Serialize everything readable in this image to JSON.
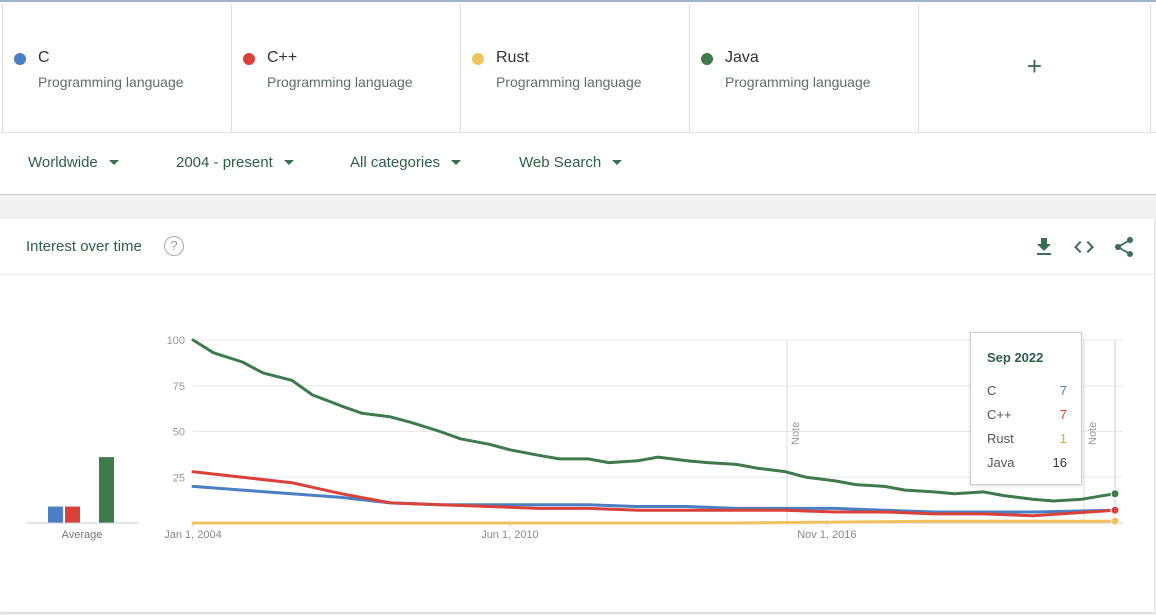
{
  "terms": [
    {
      "name": "C",
      "subtitle": "Programming language",
      "color": "#4a80c3"
    },
    {
      "name": "C++",
      "subtitle": "Programming language",
      "color": "#d9413a"
    },
    {
      "name": "Rust",
      "subtitle": "Programming language",
      "color": "#f0c25e"
    },
    {
      "name": "Java",
      "subtitle": "Programming language",
      "color": "#3d7a4c"
    }
  ],
  "add_label": "+",
  "filters": {
    "region": "Worldwide",
    "time": "2004 - present",
    "category": "All categories",
    "search_type": "Web Search"
  },
  "card": {
    "title": "Interest over time",
    "help_icon": "?",
    "icons": [
      "download-icon",
      "embed-icon",
      "share-icon"
    ]
  },
  "average_label": "Average",
  "notes": [
    "Note",
    "Note"
  ],
  "tooltip": {
    "date": "Sep 2022",
    "rows": [
      {
        "name": "C",
        "value": "7"
      },
      {
        "name": "C++",
        "value": "7"
      },
      {
        "name": "Rust",
        "value": "1"
      },
      {
        "name": "Java",
        "value": "16"
      }
    ]
  },
  "chart_data": {
    "type": "line",
    "x_tick_labels": [
      "Jan 1, 2004",
      "Jun 1, 2010",
      "Nov 1, 2016"
    ],
    "y_tick_labels": [
      "100",
      "75",
      "50",
      "25"
    ],
    "ylim": [
      0,
      100
    ],
    "xlim": [
      "2004-01",
      "2022-09"
    ],
    "grid": true,
    "series": [
      {
        "name": "C",
        "color": "#4a80c3",
        "points": [
          [
            "2004-01",
            20
          ],
          [
            "2005-01",
            18
          ],
          [
            "2006-01",
            16
          ],
          [
            "2007-01",
            14
          ],
          [
            "2008-01",
            11
          ],
          [
            "2009-01",
            10
          ],
          [
            "2010-01",
            10
          ],
          [
            "2011-01",
            10
          ],
          [
            "2012-01",
            10
          ],
          [
            "2013-01",
            9
          ],
          [
            "2014-01",
            9
          ],
          [
            "2015-01",
            8
          ],
          [
            "2016-01",
            8
          ],
          [
            "2017-01",
            8
          ],
          [
            "2018-01",
            7
          ],
          [
            "2019-01",
            6
          ],
          [
            "2020-01",
            6
          ],
          [
            "2021-01",
            6
          ],
          [
            "2022-09",
            7
          ]
        ]
      },
      {
        "name": "C++",
        "color": "#d9413a",
        "points": [
          [
            "2004-01",
            28
          ],
          [
            "2005-01",
            25
          ],
          [
            "2006-01",
            22
          ],
          [
            "2007-01",
            16
          ],
          [
            "2008-01",
            11
          ],
          [
            "2009-01",
            10
          ],
          [
            "2010-01",
            9
          ],
          [
            "2011-01",
            8
          ],
          [
            "2012-01",
            8
          ],
          [
            "2013-01",
            7
          ],
          [
            "2014-01",
            7
          ],
          [
            "2015-01",
            7
          ],
          [
            "2016-01",
            7
          ],
          [
            "2017-01",
            6
          ],
          [
            "2018-01",
            6
          ],
          [
            "2019-01",
            5
          ],
          [
            "2020-01",
            5
          ],
          [
            "2021-01",
            4
          ],
          [
            "2022-09",
            7
          ]
        ]
      },
      {
        "name": "Rust",
        "color": "#f0c25e",
        "points": [
          [
            "2004-01",
            0
          ],
          [
            "2010-01",
            0
          ],
          [
            "2015-01",
            0
          ],
          [
            "2019-01",
            1
          ],
          [
            "2022-09",
            1
          ]
        ]
      },
      {
        "name": "Java",
        "color": "#3d7a4c",
        "points": [
          [
            "2004-01",
            100
          ],
          [
            "2004-06",
            93
          ],
          [
            "2005-01",
            88
          ],
          [
            "2005-06",
            82
          ],
          [
            "2006-01",
            78
          ],
          [
            "2006-06",
            70
          ],
          [
            "2007-01",
            64
          ],
          [
            "2007-06",
            60
          ],
          [
            "2008-01",
            58
          ],
          [
            "2008-06",
            55
          ],
          [
            "2009-01",
            50
          ],
          [
            "2009-06",
            46
          ],
          [
            "2010-01",
            43
          ],
          [
            "2010-06",
            40
          ],
          [
            "2011-01",
            37
          ],
          [
            "2011-06",
            35
          ],
          [
            "2012-01",
            35
          ],
          [
            "2012-06",
            33
          ],
          [
            "2013-01",
            34
          ],
          [
            "2013-06",
            36
          ],
          [
            "2014-01",
            34
          ],
          [
            "2014-06",
            33
          ],
          [
            "2015-01",
            32
          ],
          [
            "2015-06",
            30
          ],
          [
            "2016-01",
            28
          ],
          [
            "2016-06",
            25
          ],
          [
            "2017-01",
            23
          ],
          [
            "2017-06",
            21
          ],
          [
            "2018-01",
            20
          ],
          [
            "2018-06",
            18
          ],
          [
            "2019-01",
            17
          ],
          [
            "2019-06",
            16
          ],
          [
            "2020-01",
            17
          ],
          [
            "2020-06",
            15
          ],
          [
            "2021-01",
            13
          ],
          [
            "2021-06",
            12
          ],
          [
            "2022-01",
            13
          ],
          [
            "2022-09",
            16
          ]
        ]
      }
    ],
    "average": [
      {
        "name": "C",
        "value": 9,
        "color": "#4a80c3"
      },
      {
        "name": "C++",
        "value": 9,
        "color": "#d9413a"
      },
      {
        "name": "Rust",
        "value": 0,
        "color": "#f0c25e"
      },
      {
        "name": "Java",
        "value": 36,
        "color": "#3d7a4c"
      }
    ]
  }
}
